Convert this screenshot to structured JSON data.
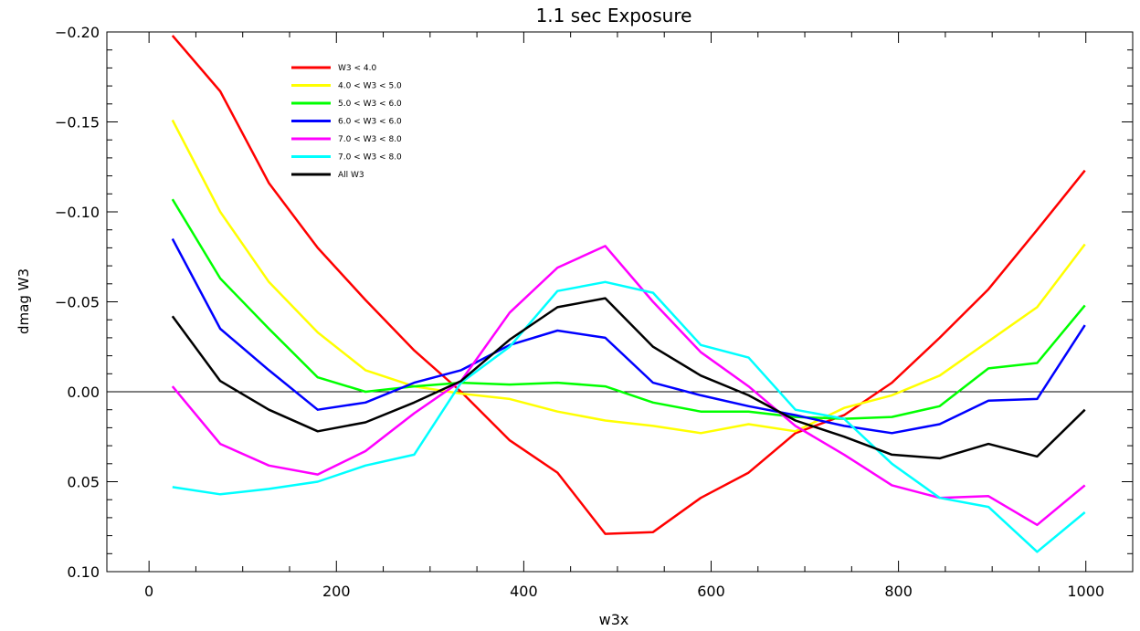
{
  "chart_data": {
    "type": "line",
    "title": "1.1 sec Exposure",
    "xlabel": "w3x",
    "ylabel": "dmag W3",
    "xlim": [
      -45,
      1050
    ],
    "ylim": [
      0.1,
      -0.2
    ],
    "y_inverted": true,
    "grid": false,
    "legend_position": "top-left",
    "zero_line": 0.0,
    "xticks": [
      0,
      200,
      400,
      600,
      800,
      1000
    ],
    "xtick_labels": [
      "0",
      "200",
      "400",
      "600",
      "800",
      "1000"
    ],
    "yticks": [
      -0.2,
      -0.15,
      -0.1,
      -0.05,
      0.0,
      0.05,
      0.1
    ],
    "ytick_labels": [
      "−0.20",
      "−0.15",
      "−0.10",
      "−0.05",
      "0.00",
      "0.05",
      "0.10"
    ],
    "x": [
      25,
      76,
      128,
      180,
      231,
      283,
      333,
      385,
      436,
      487,
      538,
      589,
      640,
      690,
      742,
      793,
      844,
      896,
      948,
      999
    ],
    "series": [
      {
        "name": "W3 < 4.0",
        "color": "#ff0000",
        "values": [
          -0.198,
          -0.167,
          -0.116,
          -0.08,
          -0.051,
          -0.023,
          0.0,
          0.027,
          0.045,
          0.079,
          0.078,
          0.059,
          0.045,
          0.023,
          0.013,
          -0.005,
          -0.03,
          -0.057,
          -0.09,
          -0.123
        ]
      },
      {
        "name": "4.0 < W3 < 5.0",
        "color": "#ffff00",
        "values": [
          -0.151,
          -0.1,
          -0.061,
          -0.033,
          -0.012,
          -0.003,
          0.001,
          0.004,
          0.011,
          0.016,
          0.019,
          0.023,
          0.018,
          0.022,
          0.009,
          0.002,
          -0.009,
          -0.028,
          -0.047,
          -0.082
        ]
      },
      {
        "name": "5.0 < W3 < 6.0",
        "color": "#00ff00",
        "values": [
          -0.107,
          -0.063,
          -0.035,
          -0.008,
          0.0,
          -0.003,
          -0.005,
          -0.004,
          -0.005,
          -0.003,
          0.006,
          0.011,
          0.011,
          0.014,
          0.015,
          0.014,
          0.008,
          -0.013,
          -0.016,
          -0.048
        ]
      },
      {
        "name": "6.0 < W3 < 6.0",
        "color": "#0000ff",
        "values": [
          -0.085,
          -0.035,
          -0.012,
          0.01,
          0.006,
          -0.005,
          -0.012,
          -0.026,
          -0.034,
          -0.03,
          -0.005,
          0.002,
          0.008,
          0.013,
          0.019,
          0.023,
          0.018,
          0.005,
          0.004,
          -0.037
        ]
      },
      {
        "name": "7.0 < W3 < 8.0",
        "color": "#ff00ff",
        "values": [
          -0.003,
          0.029,
          0.041,
          0.046,
          0.033,
          0.012,
          -0.006,
          -0.044,
          -0.069,
          -0.081,
          -0.05,
          -0.022,
          -0.003,
          0.019,
          0.035,
          0.052,
          0.059,
          0.058,
          0.074,
          0.052
        ]
      },
      {
        "name": "7.0 < W3 < 8.0",
        "color": "#00ffff",
        "values": [
          0.053,
          0.057,
          0.054,
          0.05,
          0.041,
          0.035,
          -0.005,
          -0.025,
          -0.056,
          -0.061,
          -0.055,
          -0.026,
          -0.019,
          0.01,
          0.015,
          0.04,
          0.059,
          0.064,
          0.089,
          0.067
        ]
      },
      {
        "name": "All W3",
        "color": "#000000",
        "values": [
          -0.042,
          -0.006,
          0.01,
          0.022,
          0.017,
          0.006,
          -0.006,
          -0.029,
          -0.047,
          -0.052,
          -0.025,
          -0.009,
          0.002,
          0.016,
          0.025,
          0.035,
          0.037,
          0.029,
          0.036,
          0.01
        ]
      }
    ]
  }
}
